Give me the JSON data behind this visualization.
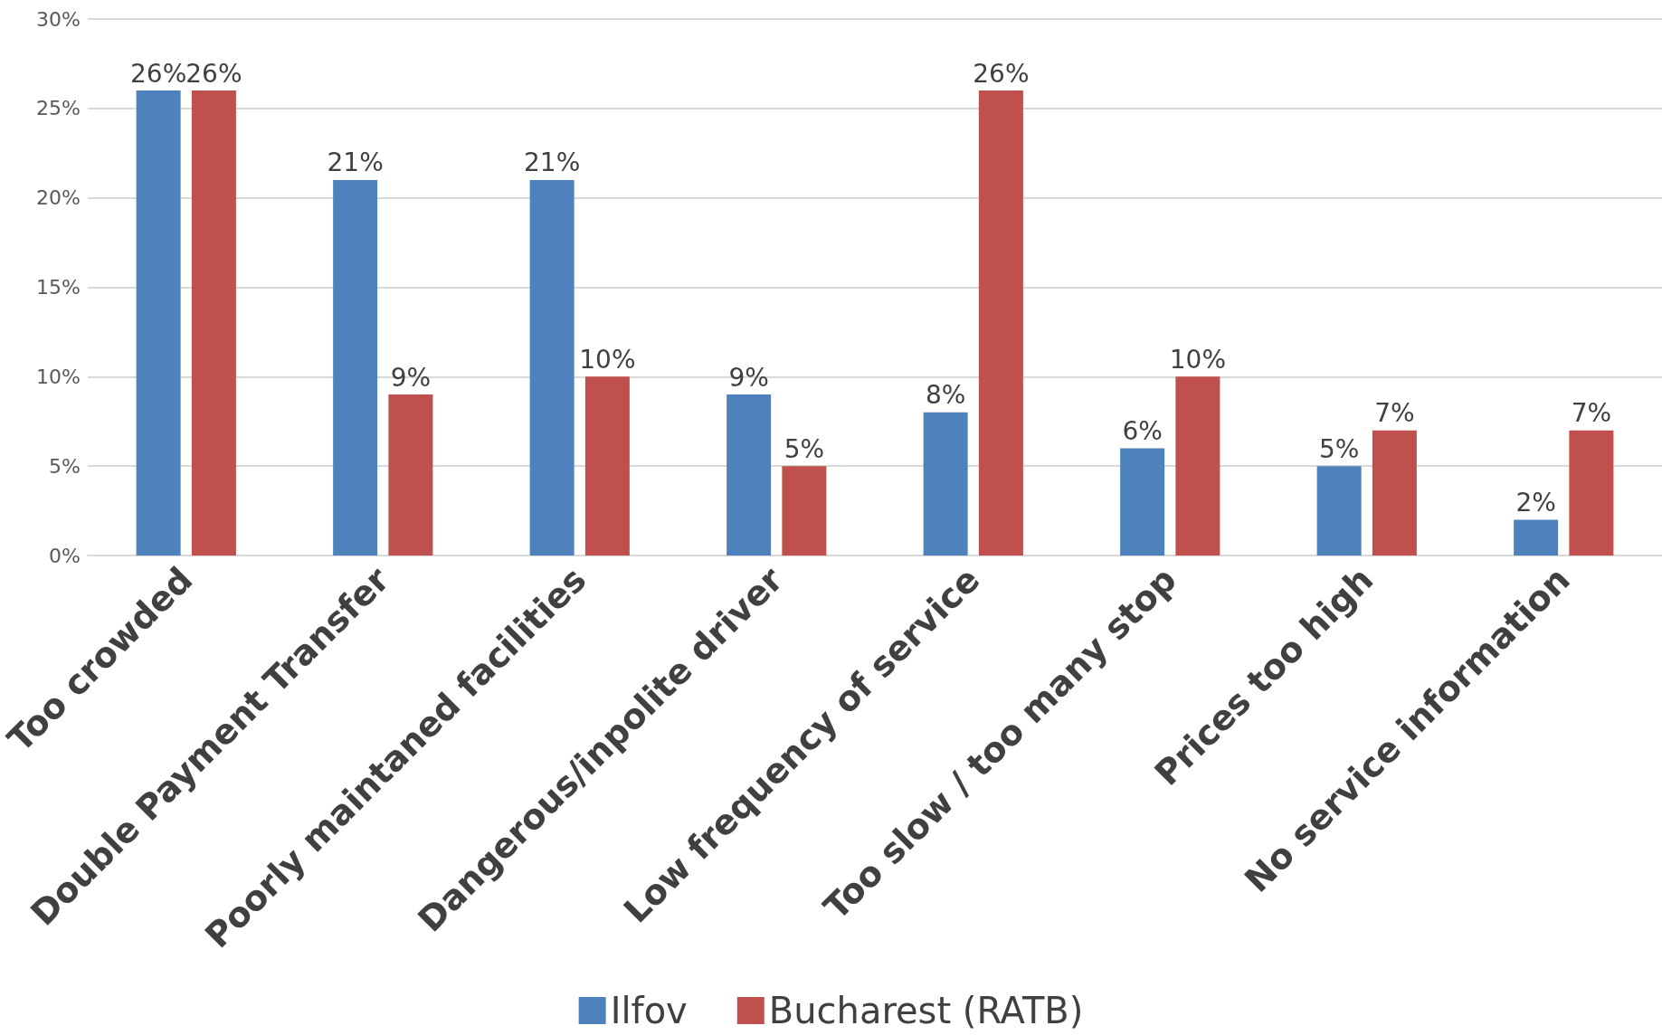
{
  "chart_data": {
    "type": "bar",
    "categories": [
      "Too crowded",
      "Double Payment Transfer",
      "Poorly maintaned facilities",
      "Dangerous/inpolite driver",
      "Low frequency of service",
      "Too slow / too many stop",
      "Prices too high",
      "No service information"
    ],
    "series": [
      {
        "name": "Ilfov",
        "color": "#4f81bd",
        "values": [
          26,
          21,
          21,
          9,
          8,
          6,
          5,
          2
        ],
        "value_labels": [
          "26%",
          "21%",
          "21%",
          "9%",
          "8%",
          "6%",
          "5%",
          "2%"
        ]
      },
      {
        "name": "Bucharest (RATB)",
        "color": "#c0504d",
        "values": [
          26,
          9,
          10,
          5,
          26,
          10,
          7,
          7
        ],
        "value_labels": [
          "26%",
          "9%",
          "10%",
          "5%",
          "26%",
          "10%",
          "7%",
          "7%"
        ]
      }
    ],
    "ylim": [
      0,
      30
    ],
    "yticks": [
      {
        "value": 0,
        "label": "0%"
      },
      {
        "value": 5,
        "label": "5%"
      },
      {
        "value": 10,
        "label": "10%"
      },
      {
        "value": 15,
        "label": "15%"
      },
      {
        "value": 20,
        "label": "20%"
      },
      {
        "value": 25,
        "label": "25%"
      },
      {
        "value": 30,
        "label": "30%"
      }
    ],
    "grid": "y",
    "legend": "bottom"
  }
}
